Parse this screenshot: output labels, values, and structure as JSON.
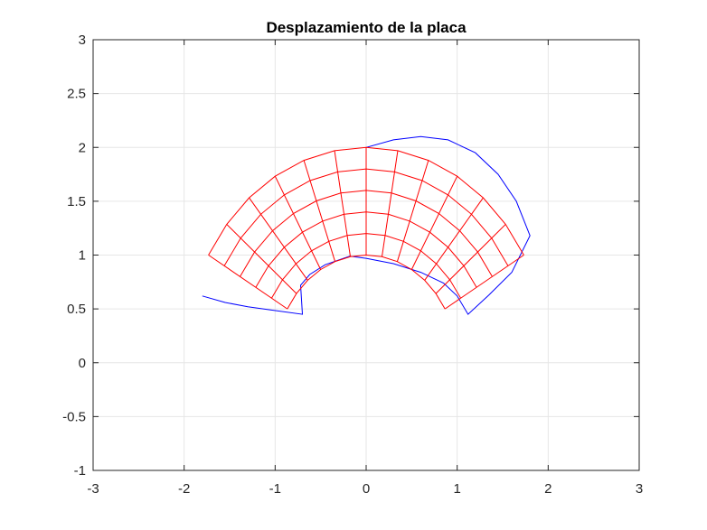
{
  "chart_data": {
    "type": "line",
    "title": "Desplazamiento de la placa",
    "xlabel": "",
    "ylabel": "",
    "xlim": [
      -3,
      3
    ],
    "ylim": [
      -1,
      3
    ],
    "xticks": [
      -3,
      -2,
      -1,
      0,
      1,
      2,
      3
    ],
    "xtick_labels": [
      "-3",
      "-2",
      "-1",
      "0",
      "1",
      "2",
      "3"
    ],
    "yticks": [
      -1,
      -0.5,
      0,
      0.5,
      1,
      1.5,
      2,
      2.5,
      3
    ],
    "ytick_labels": [
      "-1",
      "-0.5",
      "0",
      "0.5",
      "1",
      "1.5",
      "2",
      "2.5",
      "3"
    ],
    "grid": true,
    "colors": {
      "series_a": "#0000ff",
      "series_b": "#ff0000"
    },
    "series": [
      {
        "style": "outline",
        "color": "#0000ff",
        "points": [
          [
            -1.8,
            0.62
          ],
          [
            -1.55,
            0.56
          ],
          [
            -1.3,
            0.52
          ],
          [
            -1.05,
            0.49
          ],
          [
            -0.7,
            0.45
          ],
          [
            -0.72,
            0.72
          ],
          [
            -0.62,
            0.82
          ],
          [
            -0.45,
            0.91
          ],
          [
            -0.18,
            0.99
          ],
          [
            0.0,
            0.97
          ],
          [
            0.3,
            0.92
          ],
          [
            0.6,
            0.84
          ],
          [
            0.85,
            0.74
          ],
          [
            1.0,
            0.62
          ],
          [
            1.12,
            0.45
          ],
          [
            1.35,
            0.63
          ],
          [
            1.6,
            0.84
          ],
          [
            1.8,
            1.18
          ],
          [
            1.65,
            1.5
          ],
          [
            1.45,
            1.75
          ],
          [
            1.2,
            1.95
          ],
          [
            0.9,
            2.07
          ],
          [
            0.6,
            2.1
          ],
          [
            0.3,
            2.07
          ],
          [
            0.0,
            2.0
          ]
        ]
      },
      {
        "style": "grid-mesh",
        "color": "#ff0000",
        "shape": "half-annulus",
        "center": [
          0,
          0
        ],
        "inner_radius": 1.0,
        "outer_radius": 2.0,
        "angle_start_deg": 30,
        "angle_end_deg": 150,
        "radial_divisions": 5,
        "angular_divisions": 12
      }
    ]
  }
}
